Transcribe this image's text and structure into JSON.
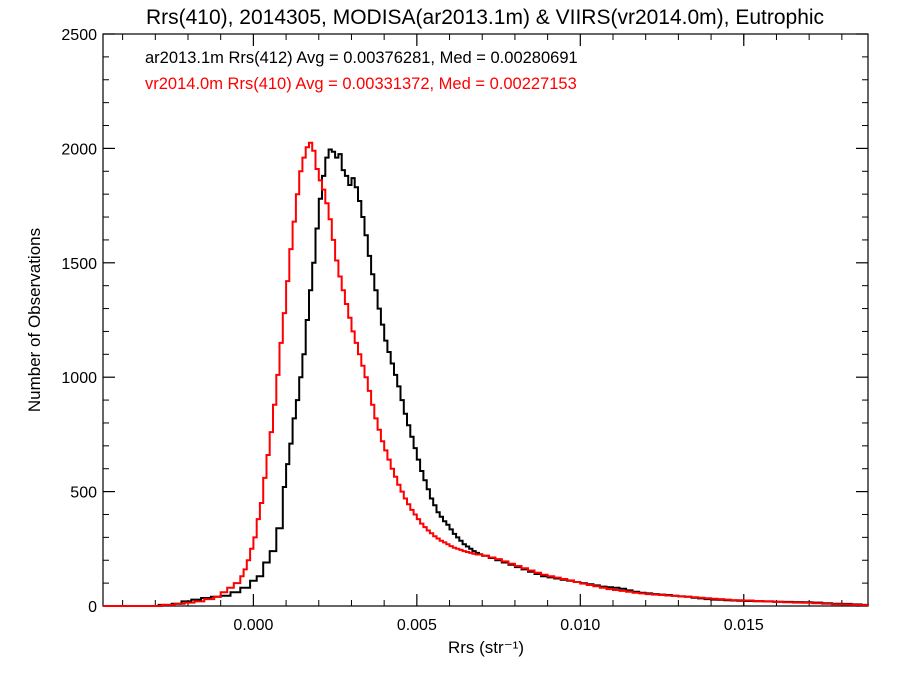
{
  "chart_data": {
    "type": "line",
    "title": "Rrs(410), 2014305, MODISA(ar2013.1m) & VIIRS(vr2014.0m), Eutrophic",
    "xlabel": "Rrs (str⁻¹)",
    "ylabel": "Number of Observations",
    "xlim": [
      -0.0046,
      0.0188
    ],
    "ylim": [
      0,
      2500
    ],
    "xticks": [
      0.0,
      0.005,
      0.01,
      0.015
    ],
    "xtick_labels": [
      "0.000",
      "0.005",
      "0.010",
      "0.015"
    ],
    "yticks": [
      0,
      500,
      1000,
      1500,
      2000,
      2500
    ],
    "ytick_labels": [
      "0",
      "500",
      "1000",
      "1500",
      "2000",
      "2500"
    ],
    "legend_placement": "top-left",
    "grid": false,
    "step": true,
    "series": [
      {
        "name": "ar2013.1m Rrs(412) Avg = 0.00376281, Med = 0.00280691",
        "color": "#000000",
        "points": [
          [
            -0.0046,
            0
          ],
          [
            -0.0035,
            0
          ],
          [
            -0.0029,
            5
          ],
          [
            -0.0025,
            10
          ],
          [
            -0.0022,
            20
          ],
          [
            -0.0019,
            28
          ],
          [
            -0.0016,
            35
          ],
          [
            -0.0013,
            40
          ],
          [
            -0.001,
            45
          ],
          [
            -0.0007,
            60
          ],
          [
            -0.0004,
            80
          ],
          [
            -0.0001,
            110
          ],
          [
            0.0001,
            130
          ],
          [
            0.0003,
            190
          ],
          [
            0.0005,
            240
          ],
          [
            0.0007,
            340
          ],
          [
            0.0009,
            520
          ],
          [
            0.001,
            620
          ],
          [
            0.0011,
            710
          ],
          [
            0.0012,
            820
          ],
          [
            0.0013,
            900
          ],
          [
            0.0014,
            1000
          ],
          [
            0.0015,
            1100
          ],
          [
            0.0016,
            1250
          ],
          [
            0.0017,
            1380
          ],
          [
            0.0018,
            1500
          ],
          [
            0.0019,
            1650
          ],
          [
            0.002,
            1780
          ],
          [
            0.0021,
            1880
          ],
          [
            0.0022,
            1960
          ],
          [
            0.0023,
            1995
          ],
          [
            0.0024,
            1985
          ],
          [
            0.0025,
            1960
          ],
          [
            0.0026,
            1975
          ],
          [
            0.0027,
            1905
          ],
          [
            0.0028,
            1880
          ],
          [
            0.0029,
            1840
          ],
          [
            0.003,
            1870
          ],
          [
            0.0031,
            1830
          ],
          [
            0.0032,
            1770
          ],
          [
            0.0033,
            1700
          ],
          [
            0.0034,
            1620
          ],
          [
            0.0035,
            1530
          ],
          [
            0.0036,
            1450
          ],
          [
            0.0037,
            1380
          ],
          [
            0.0038,
            1300
          ],
          [
            0.0039,
            1230
          ],
          [
            0.004,
            1160
          ],
          [
            0.0041,
            1110
          ],
          [
            0.0042,
            1060
          ],
          [
            0.0043,
            1010
          ],
          [
            0.0044,
            960
          ],
          [
            0.0045,
            900
          ],
          [
            0.0046,
            840
          ],
          [
            0.0047,
            790
          ],
          [
            0.0048,
            740
          ],
          [
            0.0049,
            690
          ],
          [
            0.005,
            640
          ],
          [
            0.0051,
            590
          ],
          [
            0.0052,
            550
          ],
          [
            0.0053,
            510
          ],
          [
            0.0054,
            470
          ],
          [
            0.0055,
            440
          ],
          [
            0.0056,
            410
          ],
          [
            0.0057,
            390
          ],
          [
            0.0058,
            370
          ],
          [
            0.0059,
            355
          ],
          [
            0.006,
            335
          ],
          [
            0.0061,
            315
          ],
          [
            0.0062,
            300
          ],
          [
            0.0063,
            285
          ],
          [
            0.0064,
            270
          ],
          [
            0.0065,
            260
          ],
          [
            0.0066,
            250
          ],
          [
            0.0067,
            240
          ],
          [
            0.0068,
            232
          ],
          [
            0.0069,
            226
          ],
          [
            0.007,
            220
          ],
          [
            0.0072,
            210
          ],
          [
            0.0074,
            200
          ],
          [
            0.0076,
            190
          ],
          [
            0.0078,
            180
          ],
          [
            0.008,
            170
          ],
          [
            0.0082,
            160
          ],
          [
            0.0084,
            150
          ],
          [
            0.0086,
            140
          ],
          [
            0.0088,
            130
          ],
          [
            0.009,
            125
          ],
          [
            0.0092,
            120
          ],
          [
            0.0094,
            115
          ],
          [
            0.0096,
            110
          ],
          [
            0.0098,
            105
          ],
          [
            0.01,
            100
          ],
          [
            0.0102,
            95
          ],
          [
            0.0104,
            90
          ],
          [
            0.0106,
            85
          ],
          [
            0.0108,
            82
          ],
          [
            0.011,
            80
          ],
          [
            0.0112,
            75
          ],
          [
            0.0114,
            68
          ],
          [
            0.0116,
            62
          ],
          [
            0.0118,
            58
          ],
          [
            0.012,
            55
          ],
          [
            0.0122,
            52
          ],
          [
            0.0124,
            50
          ],
          [
            0.0126,
            48
          ],
          [
            0.0128,
            45
          ],
          [
            0.013,
            42
          ],
          [
            0.0132,
            40
          ],
          [
            0.0134,
            36
          ],
          [
            0.0136,
            33
          ],
          [
            0.0138,
            30
          ],
          [
            0.014,
            28
          ],
          [
            0.0142,
            27
          ],
          [
            0.0144,
            25
          ],
          [
            0.0146,
            24
          ],
          [
            0.0148,
            23
          ],
          [
            0.015,
            22
          ],
          [
            0.0153,
            21
          ],
          [
            0.0156,
            20
          ],
          [
            0.0159,
            19
          ],
          [
            0.0162,
            18
          ],
          [
            0.0165,
            17
          ],
          [
            0.0168,
            16
          ],
          [
            0.0171,
            15
          ],
          [
            0.0174,
            12
          ],
          [
            0.0177,
            10
          ],
          [
            0.018,
            9
          ],
          [
            0.0183,
            7
          ],
          [
            0.0186,
            5
          ],
          [
            0.0188,
            4
          ]
        ]
      },
      {
        "name": "vr2014.0m Rrs(410) Avg = 0.00331372, Med = 0.00227153",
        "color": "#ff0000",
        "points": [
          [
            -0.0046,
            0
          ],
          [
            -0.0033,
            0
          ],
          [
            -0.0028,
            5
          ],
          [
            -0.0024,
            10
          ],
          [
            -0.0021,
            15
          ],
          [
            -0.0018,
            20
          ],
          [
            -0.0015,
            30
          ],
          [
            -0.0012,
            40
          ],
          [
            -0.001,
            60
          ],
          [
            -0.0008,
            80
          ],
          [
            -0.0006,
            100
          ],
          [
            -0.0004,
            130
          ],
          [
            -0.0003,
            160
          ],
          [
            -0.0002,
            200
          ],
          [
            -0.0001,
            250
          ],
          [
            0.0,
            300
          ],
          [
            0.0001,
            380
          ],
          [
            0.0002,
            450
          ],
          [
            0.0003,
            560
          ],
          [
            0.0004,
            660
          ],
          [
            0.0005,
            760
          ],
          [
            0.0006,
            880
          ],
          [
            0.0007,
            1010
          ],
          [
            0.0008,
            1150
          ],
          [
            0.0009,
            1280
          ],
          [
            0.001,
            1420
          ],
          [
            0.0011,
            1560
          ],
          [
            0.0012,
            1680
          ],
          [
            0.0013,
            1800
          ],
          [
            0.0014,
            1900
          ],
          [
            0.0015,
            1960
          ],
          [
            0.0016,
            2005
          ],
          [
            0.0017,
            2025
          ],
          [
            0.0018,
            1990
          ],
          [
            0.0019,
            1910
          ],
          [
            0.002,
            1860
          ],
          [
            0.0021,
            1820
          ],
          [
            0.0022,
            1760
          ],
          [
            0.0023,
            1690
          ],
          [
            0.0024,
            1600
          ],
          [
            0.0025,
            1510
          ],
          [
            0.0026,
            1440
          ],
          [
            0.0027,
            1380
          ],
          [
            0.0028,
            1320
          ],
          [
            0.0029,
            1260
          ],
          [
            0.003,
            1200
          ],
          [
            0.0031,
            1150
          ],
          [
            0.0032,
            1100
          ],
          [
            0.0033,
            1050
          ],
          [
            0.0034,
            1000
          ],
          [
            0.0035,
            940
          ],
          [
            0.0036,
            880
          ],
          [
            0.0037,
            820
          ],
          [
            0.0038,
            770
          ],
          [
            0.0039,
            720
          ],
          [
            0.004,
            680
          ],
          [
            0.0041,
            640
          ],
          [
            0.0042,
            600
          ],
          [
            0.0043,
            565
          ],
          [
            0.0044,
            530
          ],
          [
            0.0045,
            500
          ],
          [
            0.0046,
            470
          ],
          [
            0.0047,
            445
          ],
          [
            0.0048,
            420
          ],
          [
            0.0049,
            400
          ],
          [
            0.005,
            380
          ],
          [
            0.0051,
            360
          ],
          [
            0.0052,
            345
          ],
          [
            0.0053,
            330
          ],
          [
            0.0054,
            318
          ],
          [
            0.0055,
            305
          ],
          [
            0.0056,
            295
          ],
          [
            0.0057,
            285
          ],
          [
            0.0058,
            278
          ],
          [
            0.0059,
            270
          ],
          [
            0.006,
            262
          ],
          [
            0.0061,
            255
          ],
          [
            0.0062,
            250
          ],
          [
            0.0063,
            245
          ],
          [
            0.0064,
            240
          ],
          [
            0.0065,
            236
          ],
          [
            0.0066,
            232
          ],
          [
            0.0067,
            228
          ],
          [
            0.0068,
            225
          ],
          [
            0.007,
            220
          ],
          [
            0.0072,
            212
          ],
          [
            0.0074,
            205
          ],
          [
            0.0076,
            195
          ],
          [
            0.0078,
            185
          ],
          [
            0.008,
            175
          ],
          [
            0.0082,
            165
          ],
          [
            0.0084,
            155
          ],
          [
            0.0086,
            145
          ],
          [
            0.0088,
            137
          ],
          [
            0.009,
            130
          ],
          [
            0.0092,
            124
          ],
          [
            0.0094,
            118
          ],
          [
            0.0096,
            112
          ],
          [
            0.0098,
            105
          ],
          [
            0.01,
            98
          ],
          [
            0.0102,
            92
          ],
          [
            0.0104,
            86
          ],
          [
            0.0106,
            80
          ],
          [
            0.0108,
            74
          ],
          [
            0.011,
            70
          ],
          [
            0.0112,
            66
          ],
          [
            0.0114,
            62
          ],
          [
            0.0116,
            58
          ],
          [
            0.0118,
            55
          ],
          [
            0.012,
            52
          ],
          [
            0.0122,
            50
          ],
          [
            0.0124,
            48
          ],
          [
            0.0126,
            46
          ],
          [
            0.0128,
            44
          ],
          [
            0.013,
            42
          ],
          [
            0.0132,
            40
          ],
          [
            0.0134,
            38
          ],
          [
            0.0136,
            36
          ],
          [
            0.0138,
            34
          ],
          [
            0.014,
            32
          ],
          [
            0.0142,
            30
          ],
          [
            0.0144,
            28
          ],
          [
            0.0146,
            26
          ],
          [
            0.0148,
            25
          ],
          [
            0.015,
            24
          ],
          [
            0.0153,
            22
          ],
          [
            0.0156,
            20
          ],
          [
            0.0159,
            18
          ],
          [
            0.0162,
            16
          ],
          [
            0.0165,
            15
          ],
          [
            0.0168,
            14
          ],
          [
            0.0171,
            12
          ],
          [
            0.0174,
            10
          ],
          [
            0.0177,
            8
          ],
          [
            0.018,
            7
          ],
          [
            0.0183,
            5
          ],
          [
            0.0186,
            4
          ],
          [
            0.0188,
            3
          ]
        ]
      }
    ]
  }
}
